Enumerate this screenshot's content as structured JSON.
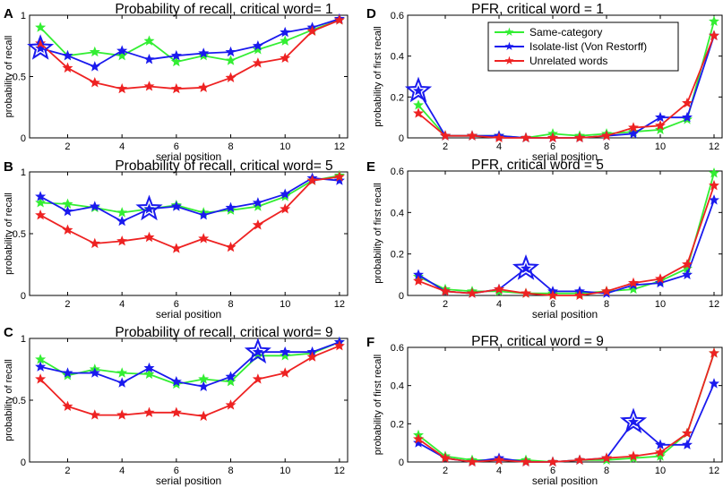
{
  "colors": {
    "same_category": "#33ee33",
    "isolate_list": "#1a1aee",
    "unrelated": "#ee2222",
    "axis": "#000000"
  },
  "legend": {
    "entries": [
      "Same-category",
      "Isolate-list (Von Restorff)",
      "Unrelated words"
    ]
  },
  "chart_data": [
    {
      "panel": "A",
      "type": "line",
      "title": "Probability of recall, critical word= 1",
      "xlabel": "serial position",
      "ylabel": "probability of recall",
      "xlim": [
        0.6,
        12.3
      ],
      "ylim": [
        0,
        1
      ],
      "xticks": [
        2,
        4,
        6,
        8,
        10,
        12
      ],
      "yticks": [
        0,
        0.5,
        1
      ],
      "ytick_labels": [
        "0",
        "0.5",
        "1"
      ],
      "critical_position": 1,
      "x": [
        1,
        2,
        3,
        4,
        5,
        6,
        7,
        8,
        9,
        10,
        11,
        12
      ],
      "series": [
        {
          "name": "Same-category",
          "values": [
            0.9,
            0.67,
            0.7,
            0.67,
            0.79,
            0.62,
            0.67,
            0.63,
            0.72,
            0.79,
            0.88,
            0.96
          ]
        },
        {
          "name": "Isolate-list (Von Restorff)",
          "values": [
            0.73,
            0.67,
            0.58,
            0.71,
            0.64,
            0.67,
            0.69,
            0.7,
            0.75,
            0.86,
            0.9,
            0.97
          ]
        },
        {
          "name": "Unrelated words",
          "values": [
            0.77,
            0.57,
            0.45,
            0.4,
            0.42,
            0.4,
            0.41,
            0.49,
            0.61,
            0.65,
            0.87,
            0.96
          ]
        }
      ]
    },
    {
      "panel": "B",
      "type": "line",
      "title": "Probability of recall, critical word= 5",
      "xlabel": "serial position",
      "ylabel": "probability of recall",
      "xlim": [
        0.6,
        12.3
      ],
      "ylim": [
        0,
        1
      ],
      "xticks": [
        2,
        4,
        6,
        8,
        10,
        12
      ],
      "yticks": [
        0,
        0.5,
        1
      ],
      "ytick_labels": [
        "0",
        "0.5",
        "1"
      ],
      "critical_position": 5,
      "x": [
        1,
        2,
        3,
        4,
        5,
        6,
        7,
        8,
        9,
        10,
        11,
        12
      ],
      "series": [
        {
          "name": "Same-category",
          "values": [
            0.75,
            0.74,
            0.71,
            0.67,
            0.7,
            0.73,
            0.67,
            0.69,
            0.72,
            0.8,
            0.93,
            0.97
          ]
        },
        {
          "name": "Isolate-list (Von Restorff)",
          "values": [
            0.8,
            0.68,
            0.72,
            0.6,
            0.7,
            0.72,
            0.65,
            0.71,
            0.75,
            0.82,
            0.95,
            0.93
          ]
        },
        {
          "name": "Unrelated words",
          "values": [
            0.65,
            0.53,
            0.42,
            0.44,
            0.47,
            0.38,
            0.46,
            0.39,
            0.57,
            0.7,
            0.93,
            0.96
          ]
        }
      ]
    },
    {
      "panel": "C",
      "type": "line",
      "title": "Probability of recall, critical word= 9",
      "xlabel": "serial position",
      "ylabel": "probability of recall",
      "xlim": [
        0.6,
        12.3
      ],
      "ylim": [
        0,
        1
      ],
      "xticks": [
        2,
        4,
        6,
        8,
        10,
        12
      ],
      "yticks": [
        0,
        0.5,
        1
      ],
      "ytick_labels": [
        "0",
        "0.5",
        "1"
      ],
      "critical_position": 9,
      "x": [
        1,
        2,
        3,
        4,
        5,
        6,
        7,
        8,
        9,
        10,
        11,
        12
      ],
      "series": [
        {
          "name": "Same-category",
          "values": [
            0.83,
            0.7,
            0.75,
            0.72,
            0.71,
            0.63,
            0.67,
            0.65,
            0.86,
            0.86,
            0.88,
            0.97
          ]
        },
        {
          "name": "Isolate-list (Von Restorff)",
          "values": [
            0.77,
            0.72,
            0.72,
            0.64,
            0.76,
            0.65,
            0.61,
            0.69,
            0.89,
            0.89,
            0.89,
            0.97
          ]
        },
        {
          "name": "Unrelated words",
          "values": [
            0.67,
            0.45,
            0.38,
            0.38,
            0.4,
            0.4,
            0.37,
            0.46,
            0.67,
            0.72,
            0.85,
            0.94
          ]
        }
      ]
    },
    {
      "panel": "D",
      "type": "line",
      "title": "PFR, critical word = 1",
      "xlabel": "serial position",
      "ylabel": "probability of first recall",
      "xlim": [
        0.6,
        12.3
      ],
      "ylim": [
        0,
        0.6
      ],
      "xticks": [
        2,
        4,
        6,
        8,
        10,
        12
      ],
      "yticks": [
        0,
        0.2,
        0.4,
        0.6
      ],
      "ytick_labels": [
        "0",
        "0.2",
        "0.4",
        "0.6"
      ],
      "critical_position": 1,
      "x": [
        1,
        2,
        3,
        4,
        5,
        6,
        7,
        8,
        9,
        10,
        11,
        12
      ],
      "series": [
        {
          "name": "Same-category",
          "values": [
            0.16,
            0.01,
            0.01,
            0.01,
            0.0,
            0.02,
            0.01,
            0.02,
            0.03,
            0.04,
            0.09,
            0.57
          ]
        },
        {
          "name": "Isolate-list (Von Restorff)",
          "values": [
            0.23,
            0.01,
            0.01,
            0.01,
            0.0,
            0.0,
            0.0,
            0.01,
            0.02,
            0.1,
            0.1,
            0.5
          ]
        },
        {
          "name": "Unrelated words",
          "values": [
            0.12,
            0.01,
            0.01,
            0.0,
            0.0,
            0.0,
            0.0,
            0.01,
            0.05,
            0.06,
            0.17,
            0.5
          ]
        }
      ]
    },
    {
      "panel": "E",
      "type": "line",
      "title": "PFR, critical word = 5",
      "xlabel": "serial position",
      "ylabel": "probability of first recall",
      "xlim": [
        0.6,
        12.3
      ],
      "ylim": [
        0,
        0.6
      ],
      "xticks": [
        2,
        4,
        6,
        8,
        10,
        12
      ],
      "yticks": [
        0,
        0.2,
        0.4,
        0.6
      ],
      "ytick_labels": [
        "0",
        "0.2",
        "0.4",
        "0.6"
      ],
      "critical_position": 5,
      "x": [
        1,
        2,
        3,
        4,
        5,
        6,
        7,
        8,
        9,
        10,
        11,
        12
      ],
      "series": [
        {
          "name": "Same-category",
          "values": [
            0.09,
            0.03,
            0.02,
            0.02,
            0.01,
            0.01,
            0.01,
            0.02,
            0.03,
            0.07,
            0.13,
            0.59
          ]
        },
        {
          "name": "Isolate-list (Von Restorff)",
          "values": [
            0.1,
            0.02,
            0.01,
            0.03,
            0.13,
            0.02,
            0.02,
            0.01,
            0.05,
            0.06,
            0.1,
            0.46
          ]
        },
        {
          "name": "Unrelated words",
          "values": [
            0.07,
            0.02,
            0.01,
            0.03,
            0.01,
            0.0,
            0.0,
            0.02,
            0.06,
            0.08,
            0.15,
            0.53
          ]
        }
      ]
    },
    {
      "panel": "F",
      "type": "line",
      "title": "PFR, critical word = 9",
      "xlabel": "serial position",
      "ylabel": "probability of first recall",
      "xlim": [
        0.6,
        12.3
      ],
      "ylim": [
        0,
        0.6
      ],
      "xticks": [
        2,
        4,
        6,
        8,
        10,
        12
      ],
      "yticks": [
        0,
        0.2,
        0.4,
        0.6
      ],
      "ytick_labels": [
        "0",
        "0.2",
        "0.4",
        "0.6"
      ],
      "critical_position": 9,
      "x": [
        1,
        2,
        3,
        4,
        5,
        6,
        7,
        8,
        9,
        10,
        11,
        12
      ],
      "series": [
        {
          "name": "Same-category",
          "values": [
            0.14,
            0.03,
            0.01,
            0.01,
            0.01,
            0.0,
            0.01,
            0.01,
            0.02,
            0.03,
            0.15,
            0.57
          ]
        },
        {
          "name": "Isolate-list (Von Restorff)",
          "values": [
            0.1,
            0.02,
            0.0,
            0.02,
            0.0,
            0.0,
            0.01,
            0.02,
            0.21,
            0.09,
            0.09,
            0.41
          ]
        },
        {
          "name": "Unrelated words",
          "values": [
            0.12,
            0.02,
            0.0,
            0.01,
            0.0,
            0.0,
            0.01,
            0.02,
            0.03,
            0.05,
            0.15,
            0.57
          ]
        }
      ]
    }
  ]
}
